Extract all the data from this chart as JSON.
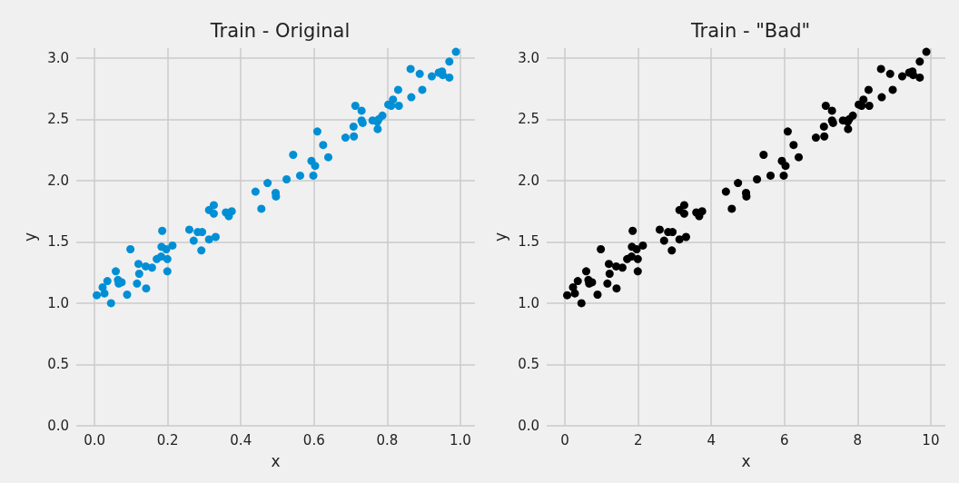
{
  "chart_data": [
    {
      "type": "scatter",
      "title": "Train - Original",
      "xlabel": "x",
      "ylabel": "y",
      "grid": true,
      "marker": "circle",
      "xlim": [
        -0.05,
        1.04
      ],
      "ylim": [
        0,
        3.08
      ],
      "xticks": [
        {
          "value": 0,
          "label": "0.0"
        },
        {
          "value": 0.2,
          "label": "0.2"
        },
        {
          "value": 0.4,
          "label": "0.4"
        },
        {
          "value": 0.6,
          "label": "0.6"
        },
        {
          "value": 0.8,
          "label": "0.8"
        },
        {
          "value": 1,
          "label": "1.0"
        }
      ],
      "yticks": [
        {
          "value": 0,
          "label": "0.0"
        },
        {
          "value": 0.5,
          "label": "0.5"
        },
        {
          "value": 1,
          "label": "1.0"
        },
        {
          "value": 1.5,
          "label": "1.5"
        },
        {
          "value": 2,
          "label": "2.0"
        },
        {
          "value": 2.5,
          "label": "2.5"
        },
        {
          "value": 3,
          "label": "3.0"
        }
      ],
      "series": [
        {
          "color": "#008fd5",
          "x": [
            0.006,
            0.022,
            0.027,
            0.035,
            0.045,
            0.058,
            0.064,
            0.066,
            0.074,
            0.089,
            0.098,
            0.116,
            0.12,
            0.122,
            0.14,
            0.141,
            0.157,
            0.17,
            0.182,
            0.183,
            0.185,
            0.196,
            0.199,
            0.199,
            0.213,
            0.259,
            0.271,
            0.282,
            0.292,
            0.294,
            0.313,
            0.313,
            0.326,
            0.326,
            0.331,
            0.359,
            0.367,
            0.375,
            0.44,
            0.456,
            0.473,
            0.495,
            0.496,
            0.525,
            0.543,
            0.562,
            0.593,
            0.598,
            0.603,
            0.609,
            0.625,
            0.639,
            0.686,
            0.708,
            0.709,
            0.713,
            0.73,
            0.73,
            0.733,
            0.76,
            0.773,
            0.774,
            0.777,
            0.787,
            0.803,
            0.811,
            0.816,
            0.83,
            0.832,
            0.864,
            0.866,
            0.889,
            0.896,
            0.922,
            0.941,
            0.95,
            0.952,
            0.97,
            0.97,
            0.988
          ],
          "values": [
            1.065,
            1.13,
            1.08,
            1.18,
            1.0,
            1.26,
            1.19,
            1.16,
            1.17,
            1.07,
            1.44,
            1.16,
            1.32,
            1.24,
            1.3,
            1.12,
            1.29,
            1.36,
            1.38,
            1.46,
            1.59,
            1.44,
            1.36,
            1.26,
            1.47,
            1.6,
            1.51,
            1.58,
            1.43,
            1.58,
            1.76,
            1.52,
            1.8,
            1.73,
            1.54,
            1.74,
            1.71,
            1.75,
            1.91,
            1.77,
            1.98,
            1.9,
            1.87,
            2.01,
            2.21,
            2.04,
            2.16,
            2.04,
            2.12,
            2.4,
            2.29,
            2.19,
            2.35,
            2.44,
            2.36,
            2.61,
            2.57,
            2.49,
            2.47,
            2.49,
            2.48,
            2.42,
            2.5,
            2.53,
            2.62,
            2.61,
            2.66,
            2.74,
            2.61,
            2.91,
            2.68,
            2.87,
            2.74,
            2.85,
            2.88,
            2.89,
            2.86,
            2.97,
            2.84,
            3.05
          ]
        }
      ]
    },
    {
      "type": "scatter",
      "title": "Train - \"Bad\"",
      "xlabel": "x",
      "ylabel": "y",
      "grid": true,
      "marker": "circle",
      "xlim": [
        -0.5,
        10.4
      ],
      "ylim": [
        0,
        3.08
      ],
      "xticks": [
        0,
        2,
        4,
        6,
        8,
        10
      ],
      "yticks": [
        {
          "value": 0,
          "label": "0.0"
        },
        {
          "value": 0.5,
          "label": "0.5"
        },
        {
          "value": 1,
          "label": "1.0"
        },
        {
          "value": 1.5,
          "label": "1.5"
        },
        {
          "value": 2,
          "label": "2.0"
        },
        {
          "value": 2.5,
          "label": "2.5"
        },
        {
          "value": 3,
          "label": "3.0"
        }
      ],
      "series": [
        {
          "color": "#000000",
          "x": [
            0.06,
            0.22,
            0.27,
            0.35,
            0.45,
            0.58,
            0.64,
            0.66,
            0.74,
            0.89,
            0.98,
            1.16,
            1.2,
            1.22,
            1.4,
            1.41,
            1.57,
            1.7,
            1.82,
            1.83,
            1.85,
            1.96,
            1.99,
            1.99,
            2.13,
            2.59,
            2.71,
            2.82,
            2.92,
            2.94,
            3.13,
            3.13,
            3.26,
            3.26,
            3.31,
            3.59,
            3.67,
            3.75,
            4.4,
            4.56,
            4.73,
            4.95,
            4.96,
            5.25,
            5.43,
            5.62,
            5.93,
            5.98,
            6.03,
            6.09,
            6.25,
            6.39,
            6.86,
            7.08,
            7.09,
            7.13,
            7.3,
            7.3,
            7.33,
            7.6,
            7.73,
            7.74,
            7.77,
            7.87,
            8.03,
            8.11,
            8.16,
            8.3,
            8.32,
            8.64,
            8.66,
            8.89,
            8.96,
            9.22,
            9.41,
            9.5,
            9.52,
            9.7,
            9.7,
            9.88
          ],
          "values": [
            1.065,
            1.13,
            1.08,
            1.18,
            1.0,
            1.26,
            1.19,
            1.16,
            1.17,
            1.07,
            1.44,
            1.16,
            1.32,
            1.24,
            1.3,
            1.12,
            1.29,
            1.36,
            1.38,
            1.46,
            1.59,
            1.44,
            1.36,
            1.26,
            1.47,
            1.6,
            1.51,
            1.58,
            1.43,
            1.58,
            1.76,
            1.52,
            1.8,
            1.73,
            1.54,
            1.74,
            1.71,
            1.75,
            1.91,
            1.77,
            1.98,
            1.9,
            1.87,
            2.01,
            2.21,
            2.04,
            2.16,
            2.04,
            2.12,
            2.4,
            2.29,
            2.19,
            2.35,
            2.44,
            2.36,
            2.61,
            2.57,
            2.49,
            2.47,
            2.49,
            2.48,
            2.42,
            2.5,
            2.53,
            2.62,
            2.61,
            2.66,
            2.74,
            2.61,
            2.91,
            2.68,
            2.87,
            2.74,
            2.85,
            2.88,
            2.89,
            2.86,
            2.97,
            2.84,
            3.05
          ]
        }
      ]
    }
  ]
}
